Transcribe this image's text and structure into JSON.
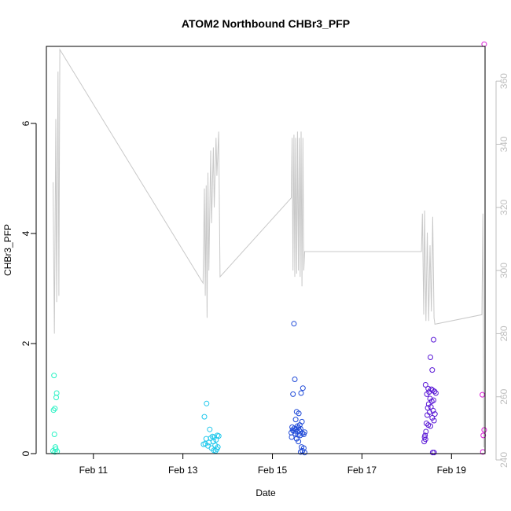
{
  "chart_data": {
    "type": "scatter",
    "title": "ATOM2 Northbound CHBr3_PFP",
    "xlabel": "Date",
    "ylabel": "CHBr3_PFP",
    "x_unit": "days in February (day-of-month, fractional)",
    "xlim": [
      9.95,
      19.75
    ],
    "ylim": [
      0,
      7.4
    ],
    "x_ticks": [
      {
        "value": 11,
        "label": "Feb 11"
      },
      {
        "value": 13,
        "label": "Feb 13"
      },
      {
        "value": 15,
        "label": "Feb 15"
      },
      {
        "value": 17,
        "label": "Feb 17"
      },
      {
        "value": 19,
        "label": "Feb 19"
      }
    ],
    "y_ticks": [
      0,
      2,
      4,
      6
    ],
    "secondary_axis": {
      "side": "right",
      "color": "#bfbfbf",
      "ylim": [
        242,
        371
      ],
      "ticks": [
        240,
        260,
        280,
        300,
        320,
        340,
        360
      ]
    },
    "points": [
      {
        "x": 10.12,
        "y": 1.42,
        "color": "#29f2c4"
      },
      {
        "x": 10.18,
        "y": 1.1,
        "color": "#29f2c4"
      },
      {
        "x": 10.17,
        "y": 1.02,
        "color": "#29f2c4"
      },
      {
        "x": 10.14,
        "y": 0.82,
        "color": "#29f2c4"
      },
      {
        "x": 10.11,
        "y": 0.79,
        "color": "#29f2c4"
      },
      {
        "x": 10.13,
        "y": 0.35,
        "color": "#29f2c4"
      },
      {
        "x": 10.15,
        "y": 0.12,
        "color": "#29f2c4"
      },
      {
        "x": 10.16,
        "y": 0.08,
        "color": "#29f2c4"
      },
      {
        "x": 10.1,
        "y": 0.05,
        "color": "#29f2c4"
      },
      {
        "x": 10.19,
        "y": 0.04,
        "color": "#29f2c4"
      },
      {
        "x": 10.14,
        "y": 0.03,
        "color": "#29f2c4"
      },
      {
        "x": 13.53,
        "y": 0.91,
        "color": "#1fc8ec"
      },
      {
        "x": 13.48,
        "y": 0.67,
        "color": "#1fc8ec"
      },
      {
        "x": 13.6,
        "y": 0.44,
        "color": "#1fc8ec"
      },
      {
        "x": 13.77,
        "y": 0.33,
        "color": "#1fc8ec"
      },
      {
        "x": 13.8,
        "y": 0.32,
        "color": "#1fc8ec"
      },
      {
        "x": 13.66,
        "y": 0.31,
        "color": "#1fc8ec"
      },
      {
        "x": 13.7,
        "y": 0.3,
        "color": "#1fc8ec"
      },
      {
        "x": 13.62,
        "y": 0.28,
        "color": "#1fc8ec"
      },
      {
        "x": 13.52,
        "y": 0.27,
        "color": "#1fc8ec"
      },
      {
        "x": 13.74,
        "y": 0.25,
        "color": "#1fc8ec"
      },
      {
        "x": 13.68,
        "y": 0.22,
        "color": "#1fc8ec"
      },
      {
        "x": 13.58,
        "y": 0.2,
        "color": "#1fc8ec"
      },
      {
        "x": 13.5,
        "y": 0.18,
        "color": "#1fc8ec"
      },
      {
        "x": 13.46,
        "y": 0.17,
        "color": "#1fc8ec"
      },
      {
        "x": 13.72,
        "y": 0.15,
        "color": "#1fc8ec"
      },
      {
        "x": 13.56,
        "y": 0.14,
        "color": "#1fc8ec"
      },
      {
        "x": 13.78,
        "y": 0.12,
        "color": "#1fc8ec"
      },
      {
        "x": 13.64,
        "y": 0.1,
        "color": "#1fc8ec"
      },
      {
        "x": 13.76,
        "y": 0.08,
        "color": "#1fc8ec"
      },
      {
        "x": 13.69,
        "y": 0.06,
        "color": "#1fc8ec"
      },
      {
        "x": 13.73,
        "y": 0.05,
        "color": "#1fc8ec"
      },
      {
        "x": 15.48,
        "y": 2.36,
        "color": "#1f4ad8"
      },
      {
        "x": 15.5,
        "y": 1.35,
        "color": "#1f4ad8"
      },
      {
        "x": 15.68,
        "y": 1.19,
        "color": "#1f4ad8"
      },
      {
        "x": 15.64,
        "y": 1.1,
        "color": "#1f4ad8"
      },
      {
        "x": 15.46,
        "y": 1.08,
        "color": "#1f4ad8"
      },
      {
        "x": 15.54,
        "y": 0.76,
        "color": "#1f4ad8"
      },
      {
        "x": 15.59,
        "y": 0.73,
        "color": "#1f4ad8"
      },
      {
        "x": 15.52,
        "y": 0.62,
        "color": "#1f4ad8"
      },
      {
        "x": 15.66,
        "y": 0.58,
        "color": "#1f4ad8"
      },
      {
        "x": 15.61,
        "y": 0.52,
        "color": "#1f4ad8"
      },
      {
        "x": 15.56,
        "y": 0.5,
        "color": "#1f4ad8"
      },
      {
        "x": 15.44,
        "y": 0.48,
        "color": "#1f4ad8"
      },
      {
        "x": 15.58,
        "y": 0.47,
        "color": "#1f4ad8"
      },
      {
        "x": 15.49,
        "y": 0.46,
        "color": "#1f4ad8"
      },
      {
        "x": 15.63,
        "y": 0.45,
        "color": "#1f4ad8"
      },
      {
        "x": 15.53,
        "y": 0.44,
        "color": "#1f4ad8"
      },
      {
        "x": 15.45,
        "y": 0.43,
        "color": "#1f4ad8"
      },
      {
        "x": 15.6,
        "y": 0.42,
        "color": "#1f4ad8"
      },
      {
        "x": 15.47,
        "y": 0.41,
        "color": "#1f4ad8"
      },
      {
        "x": 15.55,
        "y": 0.4,
        "color": "#1f4ad8"
      },
      {
        "x": 15.72,
        "y": 0.39,
        "color": "#1f4ad8"
      },
      {
        "x": 15.42,
        "y": 0.38,
        "color": "#1f4ad8"
      },
      {
        "x": 15.67,
        "y": 0.37,
        "color": "#1f4ad8"
      },
      {
        "x": 15.51,
        "y": 0.36,
        "color": "#1f4ad8"
      },
      {
        "x": 15.7,
        "y": 0.35,
        "color": "#1f4ad8"
      },
      {
        "x": 15.57,
        "y": 0.34,
        "color": "#1f4ad8"
      },
      {
        "x": 15.62,
        "y": 0.33,
        "color": "#1f4ad8"
      },
      {
        "x": 15.43,
        "y": 0.3,
        "color": "#1f4ad8"
      },
      {
        "x": 15.54,
        "y": 0.27,
        "color": "#1f4ad8"
      },
      {
        "x": 15.58,
        "y": 0.22,
        "color": "#1f4ad8"
      },
      {
        "x": 15.65,
        "y": 0.12,
        "color": "#1f4ad8"
      },
      {
        "x": 15.7,
        "y": 0.1,
        "color": "#1f4ad8"
      },
      {
        "x": 15.67,
        "y": 0.05,
        "color": "#1f4ad8"
      },
      {
        "x": 15.63,
        "y": 0.03,
        "color": "#1f4ad8"
      },
      {
        "x": 15.72,
        "y": 0.02,
        "color": "#1f4ad8"
      },
      {
        "x": 18.6,
        "y": 2.07,
        "color": "#5a18d6"
      },
      {
        "x": 18.53,
        "y": 1.75,
        "color": "#5a18d6"
      },
      {
        "x": 18.57,
        "y": 1.52,
        "color": "#5a18d6"
      },
      {
        "x": 18.42,
        "y": 1.25,
        "color": "#5a18d6"
      },
      {
        "x": 18.48,
        "y": 1.18,
        "color": "#5a18d6"
      },
      {
        "x": 18.55,
        "y": 1.17,
        "color": "#5a18d6"
      },
      {
        "x": 18.58,
        "y": 1.15,
        "color": "#5a18d6"
      },
      {
        "x": 18.62,
        "y": 1.13,
        "color": "#5a18d6"
      },
      {
        "x": 18.5,
        "y": 1.12,
        "color": "#5a18d6"
      },
      {
        "x": 18.65,
        "y": 1.1,
        "color": "#5a18d6"
      },
      {
        "x": 18.45,
        "y": 1.08,
        "color": "#5a18d6"
      },
      {
        "x": 18.52,
        "y": 1.0,
        "color": "#5a18d6"
      },
      {
        "x": 18.6,
        "y": 0.97,
        "color": "#5a18d6"
      },
      {
        "x": 18.56,
        "y": 0.95,
        "color": "#5a18d6"
      },
      {
        "x": 18.49,
        "y": 0.9,
        "color": "#5a18d6"
      },
      {
        "x": 18.54,
        "y": 0.85,
        "color": "#5a18d6"
      },
      {
        "x": 18.47,
        "y": 0.83,
        "color": "#5a18d6"
      },
      {
        "x": 18.59,
        "y": 0.78,
        "color": "#5a18d6"
      },
      {
        "x": 18.51,
        "y": 0.75,
        "color": "#5a18d6"
      },
      {
        "x": 18.63,
        "y": 0.72,
        "color": "#5a18d6"
      },
      {
        "x": 18.46,
        "y": 0.7,
        "color": "#5a18d6"
      },
      {
        "x": 18.57,
        "y": 0.65,
        "color": "#5a18d6"
      },
      {
        "x": 18.61,
        "y": 0.6,
        "color": "#5a18d6"
      },
      {
        "x": 18.44,
        "y": 0.55,
        "color": "#5a18d6"
      },
      {
        "x": 18.48,
        "y": 0.52,
        "color": "#5a18d6"
      },
      {
        "x": 18.53,
        "y": 0.5,
        "color": "#5a18d6"
      },
      {
        "x": 18.43,
        "y": 0.4,
        "color": "#5a18d6"
      },
      {
        "x": 18.41,
        "y": 0.33,
        "color": "#5a18d6"
      },
      {
        "x": 18.4,
        "y": 0.3,
        "color": "#5a18d6"
      },
      {
        "x": 18.42,
        "y": 0.26,
        "color": "#5a18d6"
      },
      {
        "x": 18.39,
        "y": 0.22,
        "color": "#5a18d6"
      },
      {
        "x": 18.58,
        "y": 0.02,
        "color": "#5a18d6"
      },
      {
        "x": 18.61,
        "y": 0.02,
        "color": "#5a18d6"
      },
      {
        "x": 19.73,
        "y": 7.44,
        "color": "#dc1ed9"
      },
      {
        "x": 19.69,
        "y": 1.07,
        "color": "#dc1ed9"
      },
      {
        "x": 19.73,
        "y": 0.43,
        "color": "#dc1ed9"
      },
      {
        "x": 19.71,
        "y": 0.33,
        "color": "#dc1ed9"
      },
      {
        "x": 19.7,
        "y": 0.03,
        "color": "#dc1ed9"
      }
    ],
    "secondary_series": {
      "color": "#c8c8c8",
      "points": [
        [
          10.1,
          328
        ],
        [
          10.13,
          280
        ],
        [
          10.16,
          348
        ],
        [
          10.18,
          290
        ],
        [
          10.21,
          363
        ],
        [
          10.23,
          292
        ],
        [
          10.25,
          370
        ],
        [
          13.45,
          296
        ],
        [
          13.48,
          326
        ],
        [
          13.5,
          292
        ],
        [
          13.52,
          327
        ],
        [
          13.54,
          285
        ],
        [
          13.56,
          331
        ],
        [
          13.58,
          300
        ],
        [
          13.62,
          338
        ],
        [
          13.64,
          315
        ],
        [
          13.68,
          339
        ],
        [
          13.7,
          320
        ],
        [
          13.74,
          342
        ],
        [
          13.76,
          330
        ],
        [
          13.8,
          344
        ],
        [
          13.83,
          298
        ],
        [
          15.42,
          323
        ],
        [
          15.44,
          342
        ],
        [
          15.46,
          300
        ],
        [
          15.48,
          343
        ],
        [
          15.5,
          298
        ],
        [
          15.52,
          342
        ],
        [
          15.54,
          299
        ],
        [
          15.56,
          344
        ],
        [
          15.58,
          300
        ],
        [
          15.6,
          342
        ],
        [
          15.62,
          298
        ],
        [
          15.64,
          344
        ],
        [
          15.66,
          295
        ],
        [
          15.68,
          342
        ],
        [
          15.7,
          300
        ],
        [
          15.72,
          306
        ],
        [
          18.33,
          306
        ],
        [
          18.35,
          318
        ],
        [
          18.38,
          286
        ],
        [
          18.4,
          319
        ],
        [
          18.43,
          284
        ],
        [
          18.46,
          312
        ],
        [
          18.49,
          284
        ],
        [
          18.52,
          308
        ],
        [
          18.55,
          287
        ],
        [
          18.58,
          317
        ],
        [
          18.61,
          285
        ],
        [
          18.63,
          283
        ],
        [
          19.68,
          286
        ],
        [
          19.7,
          318
        ],
        [
          19.72,
          244
        ]
      ]
    }
  }
}
